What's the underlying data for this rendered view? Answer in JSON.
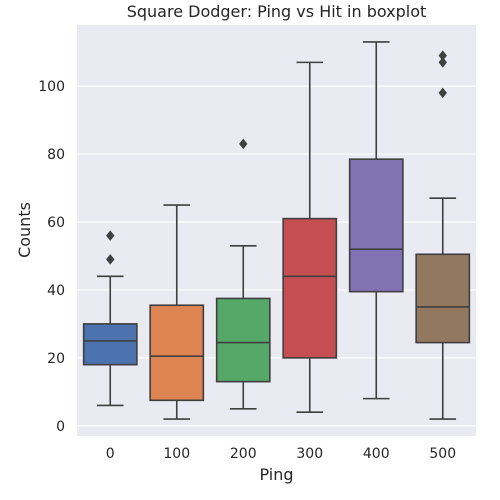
{
  "chart_data": {
    "type": "boxplot",
    "title": "Square Dodger: Ping vs Hit in boxplot",
    "xlabel": "Ping",
    "ylabel": "Counts",
    "ylim": [
      -3,
      118
    ],
    "yticks": [
      0,
      20,
      40,
      60,
      80,
      100
    ],
    "grid": true,
    "legend": "none",
    "categories": [
      "0",
      "100",
      "200",
      "300",
      "400",
      "500"
    ],
    "boxes": [
      {
        "category": "0",
        "color": "#4c72b0",
        "whisker_low": 6,
        "q1": 18,
        "median": 25,
        "q3": 30,
        "whisker_high": 44,
        "outliers": [
          49,
          56
        ]
      },
      {
        "category": "100",
        "color": "#dd8452",
        "whisker_low": 2,
        "q1": 7.5,
        "median": 20.5,
        "q3": 35.5,
        "whisker_high": 65,
        "outliers": []
      },
      {
        "category": "200",
        "color": "#55a868",
        "whisker_low": 5,
        "q1": 13,
        "median": 24.5,
        "q3": 37.5,
        "whisker_high": 53,
        "outliers": [
          83
        ]
      },
      {
        "category": "300",
        "color": "#c44e52",
        "whisker_low": 4,
        "q1": 20,
        "median": 44,
        "q3": 61,
        "whisker_high": 107,
        "outliers": []
      },
      {
        "category": "400",
        "color": "#8172b3",
        "whisker_low": 8,
        "q1": 39.5,
        "median": 52,
        "q3": 78.5,
        "whisker_high": 113,
        "outliers": []
      },
      {
        "category": "500",
        "color": "#937860",
        "whisker_low": 2,
        "q1": 24.5,
        "median": 35,
        "q3": 50.5,
        "whisker_high": 67,
        "outliers": [
          98,
          107,
          109
        ]
      }
    ],
    "colors": {
      "background": "#eaeaf2",
      "grid": "#ffffff",
      "line": "#3f3f3f",
      "text": "#262626"
    }
  }
}
